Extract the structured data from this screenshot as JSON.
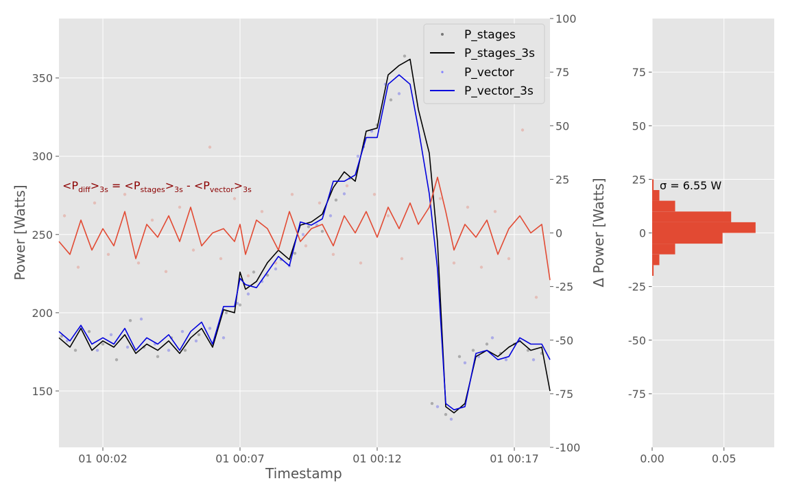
{
  "colors": {
    "p_stages": "#000000",
    "p_vector": "#0000dd",
    "p_diff": "#e24a33",
    "panel_bg": "#e5e5e5",
    "grid": "#ffffff",
    "annotation": "#8b0000"
  },
  "chart_data": [
    {
      "type": "line",
      "xlabel": "Timestamp",
      "ylabel": "Power [Watts]",
      "y2label": "Δ Power [Watts]",
      "grid": true,
      "legend_position": "top-right",
      "x_ticks": [
        "01 00:02",
        "01 00:07",
        "01 00:12",
        "01 00:17"
      ],
      "x_tick_minutes": [
        2,
        7,
        12,
        17
      ],
      "xlim_minutes": [
        0.4,
        18.3
      ],
      "ylim": [
        114,
        388
      ],
      "y_ticks": [
        150,
        200,
        250,
        300,
        350
      ],
      "y2lim": [
        -100,
        100
      ],
      "y2_ticks": [
        -100,
        -75,
        -50,
        -25,
        0,
        25,
        50,
        75,
        100
      ],
      "annotation": {
        "prefix1": "<P",
        "sub1": "diff",
        "mid1": ">",
        "sub2": "3s",
        "mid2": " = <P",
        "sub3": "stages",
        "mid3": ">",
        "sub4": "3s",
        "mid4": " - <P",
        "sub5": "vector",
        "mid5": ">",
        "sub6": "3s"
      },
      "series": [
        {
          "name": "P_stages",
          "style": "points",
          "axis": "left",
          "color": "#000000",
          "x": [
            0.5,
            1.0,
            1.5,
            2.0,
            2.5,
            3.0,
            3.5,
            4.0,
            4.5,
            5.0,
            5.5,
            6.0,
            6.5,
            7.0,
            7.5,
            8.0,
            8.5,
            9.0,
            9.5,
            10.0,
            10.5,
            11.0,
            11.5,
            12.0,
            12.5,
            13.0,
            14.0,
            14.5,
            15.0,
            15.5,
            16.0,
            16.5,
            17.0,
            17.5,
            18.0
          ],
          "values": [
            185,
            176,
            188,
            180,
            170,
            195,
            178,
            172,
            184,
            176,
            186,
            180,
            200,
            205,
            226,
            224,
            234,
            238,
            255,
            252,
            272,
            286,
            306,
            320,
            336,
            364,
            142,
            135,
            172,
            176,
            180,
            174,
            180,
            176,
            174
          ]
        },
        {
          "name": "P_stages_3s",
          "style": "line",
          "axis": "left",
          "color": "#000000",
          "x": [
            0.4,
            0.8,
            1.2,
            1.6,
            2.0,
            2.4,
            2.8,
            3.2,
            3.6,
            4.0,
            4.4,
            4.8,
            5.2,
            5.6,
            6.0,
            6.4,
            6.8,
            7.0,
            7.2,
            7.6,
            8.0,
            8.4,
            8.8,
            9.2,
            9.6,
            10.0,
            10.4,
            10.8,
            11.2,
            11.6,
            12.0,
            12.4,
            12.8,
            13.2,
            13.5,
            13.9,
            14.2,
            14.5,
            14.8,
            15.2,
            15.6,
            16.0,
            16.4,
            16.8,
            17.2,
            17.6,
            18.0,
            18.3
          ],
          "values": [
            184,
            178,
            190,
            176,
            182,
            178,
            186,
            174,
            180,
            176,
            182,
            174,
            184,
            190,
            178,
            202,
            200,
            226,
            215,
            220,
            232,
            240,
            234,
            256,
            258,
            263,
            280,
            290,
            284,
            316,
            318,
            352,
            358,
            362,
            330,
            302,
            245,
            140,
            136,
            142,
            172,
            176,
            172,
            178,
            182,
            176,
            178,
            150
          ]
        },
        {
          "name": "P_vector",
          "style": "points",
          "axis": "left",
          "color": "#0000ee",
          "x": [
            0.7,
            1.2,
            1.8,
            2.3,
            2.9,
            3.4,
            3.9,
            4.4,
            4.9,
            5.4,
            5.9,
            6.4,
            6.9,
            7.3,
            7.8,
            8.3,
            8.8,
            9.3,
            9.8,
            10.3,
            10.8,
            11.3,
            11.8,
            12.3,
            12.8,
            14.2,
            14.7,
            15.2,
            15.7,
            16.2,
            16.7,
            17.2,
            17.7
          ],
          "values": [
            182,
            190,
            176,
            186,
            178,
            196,
            180,
            176,
            188,
            182,
            190,
            184,
            206,
            212,
            220,
            228,
            230,
            250,
            256,
            262,
            276,
            300,
            316,
            346,
            340,
            140,
            132,
            168,
            172,
            184,
            170,
            182,
            170
          ]
        },
        {
          "name": "P_vector_3s",
          "style": "line",
          "axis": "left",
          "color": "#0000dd",
          "x": [
            0.4,
            0.8,
            1.2,
            1.6,
            2.0,
            2.4,
            2.8,
            3.2,
            3.6,
            4.0,
            4.4,
            4.8,
            5.2,
            5.6,
            6.0,
            6.4,
            6.8,
            7.0,
            7.2,
            7.6,
            8.0,
            8.4,
            8.8,
            9.2,
            9.6,
            10.0,
            10.4,
            10.8,
            11.2,
            11.6,
            12.0,
            12.4,
            12.8,
            13.2,
            13.5,
            13.9,
            14.2,
            14.5,
            14.8,
            15.2,
            15.6,
            16.0,
            16.4,
            16.8,
            17.2,
            17.6,
            18.0,
            18.3
          ],
          "values": [
            188,
            182,
            192,
            180,
            184,
            180,
            190,
            176,
            184,
            180,
            186,
            176,
            188,
            194,
            180,
            204,
            204,
            222,
            218,
            216,
            226,
            236,
            230,
            258,
            256,
            260,
            284,
            284,
            288,
            312,
            312,
            346,
            352,
            346,
            318,
            276,
            228,
            142,
            138,
            140,
            174,
            176,
            170,
            172,
            184,
            180,
            180,
            170
          ]
        },
        {
          "name": "",
          "style": "line-right",
          "axis": "right",
          "color": "#e24a33",
          "x": [
            0.4,
            0.8,
            1.2,
            1.6,
            2.0,
            2.4,
            2.8,
            3.2,
            3.6,
            4.0,
            4.4,
            4.8,
            5.2,
            5.6,
            6.0,
            6.4,
            6.8,
            7.0,
            7.2,
            7.6,
            8.0,
            8.4,
            8.8,
            9.2,
            9.6,
            10.0,
            10.4,
            10.8,
            11.2,
            11.6,
            12.0,
            12.4,
            12.8,
            13.2,
            13.5,
            13.9,
            14.2,
            14.5,
            14.8,
            15.2,
            15.6,
            16.0,
            16.4,
            16.8,
            17.2,
            17.6,
            18.0,
            18.3
          ],
          "values": [
            -4,
            -10,
            6,
            -8,
            2,
            -6,
            10,
            -12,
            4,
            -2,
            8,
            -4,
            12,
            -6,
            0,
            2,
            -4,
            4,
            -10,
            6,
            2,
            -8,
            10,
            -4,
            2,
            4,
            -6,
            8,
            0,
            10,
            -2,
            12,
            2,
            14,
            4,
            12,
            26,
            10,
            -8,
            4,
            -2,
            6,
            -10,
            2,
            8,
            0,
            4,
            -22
          ]
        },
        {
          "name": "",
          "style": "points-right",
          "axis": "right",
          "color": "#e24a33",
          "x": [
            0.6,
            1.1,
            1.7,
            2.2,
            2.8,
            3.3,
            3.8,
            4.3,
            4.8,
            5.3,
            5.9,
            6.3,
            6.8,
            7.3,
            7.8,
            8.3,
            8.9,
            9.4,
            9.9,
            10.4,
            10.9,
            11.4,
            11.9,
            12.4,
            12.9,
            14.3,
            14.8,
            15.3,
            15.8,
            16.3,
            16.8,
            17.3,
            17.8
          ],
          "values": [
            8,
            -16,
            14,
            -10,
            18,
            -14,
            6,
            -18,
            12,
            -8,
            40,
            -12,
            16,
            -20,
            10,
            -14,
            18,
            -6,
            14,
            -10,
            22,
            -14,
            18,
            8,
            -12,
            16,
            -14,
            12,
            -16,
            10,
            -12,
            48,
            -30
          ]
        }
      ]
    },
    {
      "type": "bar",
      "orientation": "horizontal",
      "xlabel": "",
      "ylabel": "",
      "grid": true,
      "xlim": [
        0.0,
        0.085
      ],
      "x_ticks": [
        0.0,
        0.05
      ],
      "x_tick_labels": [
        "0.00",
        "0.05"
      ],
      "ylim": [
        -100,
        100
      ],
      "y_ticks": [
        -75,
        -50,
        -25,
        0,
        25,
        50,
        75
      ],
      "annotation": "σ = 6.55 W",
      "bins": [
        [
          -20,
          -15
        ],
        [
          -15,
          -10
        ],
        [
          -10,
          -5
        ],
        [
          -5,
          0
        ],
        [
          0,
          5
        ],
        [
          5,
          10
        ],
        [
          10,
          15
        ],
        [
          15,
          20
        ],
        [
          20,
          25
        ]
      ],
      "values": [
        0.001,
        0.005,
        0.016,
        0.049,
        0.072,
        0.055,
        0.016,
        0.005,
        0.001
      ]
    }
  ]
}
